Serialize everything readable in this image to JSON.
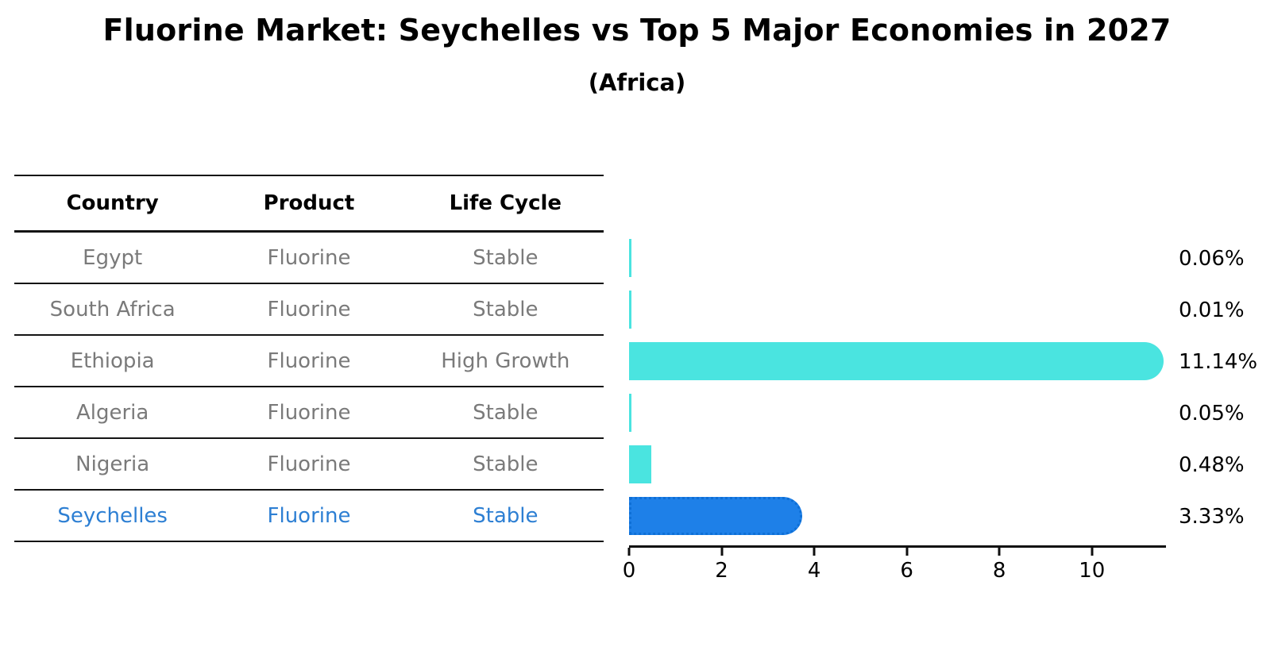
{
  "header": {
    "title": "Fluorine Market: Seychelles vs Top 5 Major Economies in 2027",
    "subtitle": "(Africa)"
  },
  "table": {
    "headers": [
      "Country",
      "Product",
      "Life Cycle"
    ],
    "rows": [
      {
        "country": "Egypt",
        "product": "Fluorine",
        "life_cycle": "Stable",
        "highlight": false
      },
      {
        "country": "South Africa",
        "product": "Fluorine",
        "life_cycle": "Stable",
        "highlight": false
      },
      {
        "country": "Ethiopia",
        "product": "Fluorine",
        "life_cycle": "High Growth",
        "highlight": false
      },
      {
        "country": "Algeria",
        "product": "Fluorine",
        "life_cycle": "Stable",
        "highlight": false
      },
      {
        "country": "Nigeria",
        "product": "Fluorine",
        "life_cycle": "Stable",
        "highlight": false
      },
      {
        "country": "Seychelles",
        "product": "Fluorine",
        "life_cycle": "Stable",
        "highlight": true
      }
    ]
  },
  "chart_data": {
    "type": "bar",
    "orientation": "horizontal",
    "title": "Fluorine Market: Seychelles vs Top 5 Major Economies in 2027",
    "subtitle": "(Africa)",
    "categories": [
      "Egypt",
      "South Africa",
      "Ethiopia",
      "Algeria",
      "Nigeria",
      "Seychelles"
    ],
    "values": [
      0.06,
      0.01,
      11.14,
      0.05,
      0.48,
      3.33
    ],
    "bar_labels": [
      "0.06%",
      "0.01%",
      "11.14%",
      "0.05%",
      "0.48%",
      "3.33%"
    ],
    "xlim": [
      0,
      11.6
    ],
    "x_ticks": [
      0,
      2,
      4,
      6,
      8,
      10
    ],
    "grid": false,
    "legend": "none",
    "bar_color": "#4ae4e0",
    "highlight_bar_color": "#1e80e8",
    "highlight_index": 5,
    "highlight_text_color": "#2d7fd3",
    "table_text_color": "#7a7a7a"
  }
}
